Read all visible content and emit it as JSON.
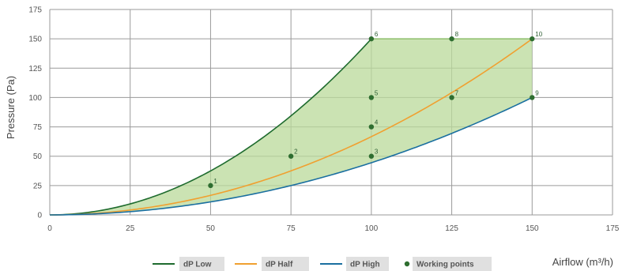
{
  "chart_data": {
    "type": "line",
    "title": "",
    "xlabel": "Airflow (m³/h)",
    "ylabel": "Pressure (Pa)",
    "xlim": [
      0,
      175
    ],
    "ylim": [
      0,
      175
    ],
    "xticks": [
      0,
      25,
      50,
      75,
      100,
      125,
      150,
      175
    ],
    "yticks": [
      0,
      25,
      50,
      75,
      100,
      125,
      150,
      175
    ],
    "grid": true,
    "legend_position": "bottom",
    "series": [
      {
        "name": "dP Low",
        "color": "#1e6b2e",
        "x": [
          0,
          10,
          20,
          30,
          40,
          50,
          60,
          70,
          80,
          90,
          100
        ],
        "y": [
          0,
          1.5,
          6,
          13.5,
          24,
          37.5,
          54,
          73.5,
          96,
          121.5,
          150
        ]
      },
      {
        "name": "dP Half",
        "color": "#f0a030",
        "x": [
          0,
          15,
          30,
          45,
          60,
          75,
          90,
          105,
          120,
          135,
          150
        ],
        "y": [
          0,
          1.5,
          6,
          13.5,
          24,
          37.5,
          54,
          73.5,
          96,
          121.5,
          150
        ]
      },
      {
        "name": "dP High",
        "color": "#1a6fa0",
        "x": [
          0,
          15,
          30,
          45,
          60,
          75,
          90,
          105,
          120,
          135,
          150
        ],
        "y": [
          0,
          1,
          4,
          9,
          16,
          25,
          36,
          49,
          64,
          81,
          100
        ]
      }
    ],
    "working_points": {
      "name": "Working points",
      "color": "#2e6e30",
      "points": [
        {
          "label": "1",
          "x": 50,
          "y": 25
        },
        {
          "label": "2",
          "x": 75,
          "y": 50
        },
        {
          "label": "3",
          "x": 100,
          "y": 50
        },
        {
          "label": "4",
          "x": 100,
          "y": 75
        },
        {
          "label": "5",
          "x": 100,
          "y": 100
        },
        {
          "label": "6",
          "x": 100,
          "y": 150
        },
        {
          "label": "7",
          "x": 125,
          "y": 100
        },
        {
          "label": "8",
          "x": 125,
          "y": 150
        },
        {
          "label": "9",
          "x": 150,
          "y": 100
        },
        {
          "label": "10",
          "x": 150,
          "y": 150
        }
      ]
    },
    "shaded_region": {
      "color": "#b9d99a",
      "description": "working area between dP Low and dP High up to 150 Pa"
    }
  },
  "legend": {
    "items": [
      "dP Low",
      "dP Half",
      "dP High",
      "Working points"
    ]
  },
  "axis": {
    "x_title": "Airflow (m³/h)",
    "y_title": "Pressure (Pa)"
  }
}
